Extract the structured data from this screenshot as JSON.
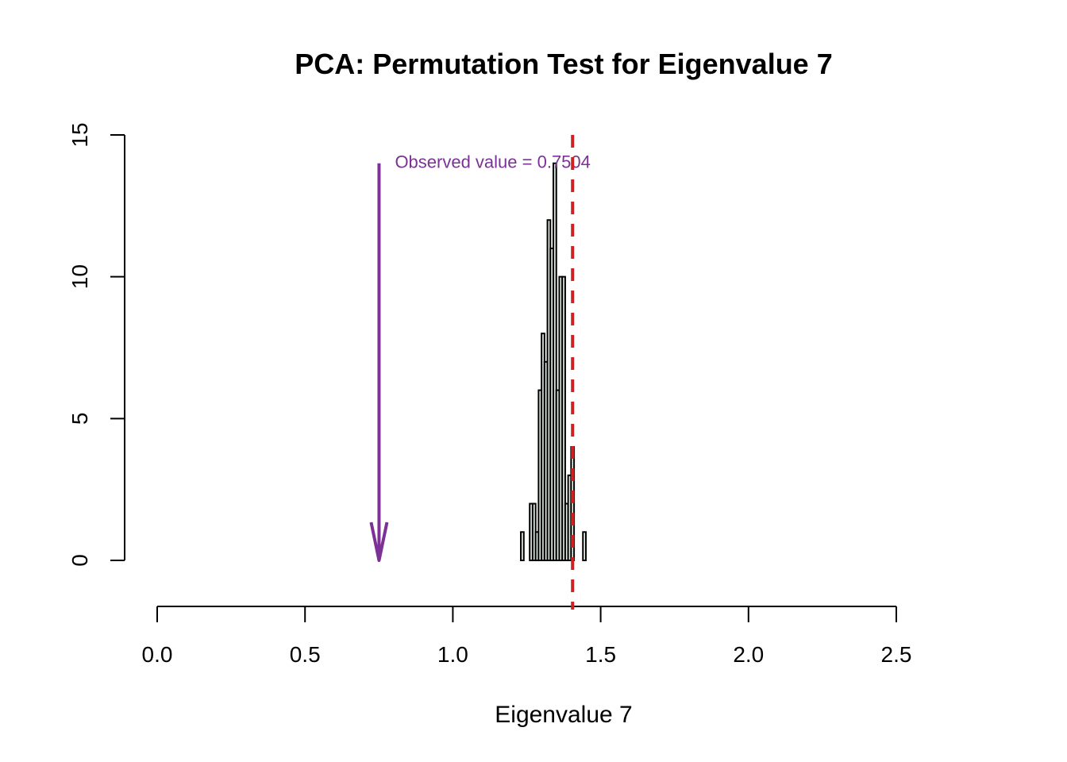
{
  "chart_data": {
    "type": "histogram",
    "title": "PCA: Permutation Test for Eigenvalue 7",
    "xlabel": "Eigenvalue 7",
    "ylabel": "",
    "xlim": [
      0,
      2.5
    ],
    "ylim": [
      0,
      15
    ],
    "x_ticks": [
      "0.0",
      "0.5",
      "1.0",
      "1.5",
      "2.0",
      "2.5"
    ],
    "y_ticks": [
      "0",
      "5",
      "10",
      "15"
    ],
    "bin_width": 0.01,
    "bins": [
      {
        "x0": 1.23,
        "x1": 1.24,
        "count": 1
      },
      {
        "x0": 1.24,
        "x1": 1.25,
        "count": 0
      },
      {
        "x0": 1.25,
        "x1": 1.26,
        "count": 0
      },
      {
        "x0": 1.26,
        "x1": 1.27,
        "count": 2
      },
      {
        "x0": 1.27,
        "x1": 1.28,
        "count": 2
      },
      {
        "x0": 1.28,
        "x1": 1.29,
        "count": 1
      },
      {
        "x0": 1.29,
        "x1": 1.3,
        "count": 6
      },
      {
        "x0": 1.3,
        "x1": 1.31,
        "count": 8
      },
      {
        "x0": 1.31,
        "x1": 1.32,
        "count": 7
      },
      {
        "x0": 1.32,
        "x1": 1.33,
        "count": 12
      },
      {
        "x0": 1.33,
        "x1": 1.34,
        "count": 11
      },
      {
        "x0": 1.34,
        "x1": 1.35,
        "count": 14
      },
      {
        "x0": 1.35,
        "x1": 1.36,
        "count": 6
      },
      {
        "x0": 1.36,
        "x1": 1.37,
        "count": 10
      },
      {
        "x0": 1.37,
        "x1": 1.38,
        "count": 10
      },
      {
        "x0": 1.38,
        "x1": 1.39,
        "count": 2
      },
      {
        "x0": 1.39,
        "x1": 1.4,
        "count": 3
      },
      {
        "x0": 1.4,
        "x1": 1.41,
        "count": 4
      },
      {
        "x0": 1.41,
        "x1": 1.42,
        "count": 0
      },
      {
        "x0": 1.42,
        "x1": 1.43,
        "count": 0
      },
      {
        "x0": 1.43,
        "x1": 1.44,
        "count": 0
      },
      {
        "x0": 1.44,
        "x1": 1.45,
        "count": 1
      }
    ],
    "observed_value": 0.7504,
    "observed_label": "Observed value = 0.7504",
    "critical_value": 1.405,
    "colors": {
      "bar_fill": "#e0ece2",
      "bar_stroke": "#000000",
      "observed": "#7b3294",
      "critical": "#cc2222"
    },
    "grid": false,
    "legend": "none"
  }
}
